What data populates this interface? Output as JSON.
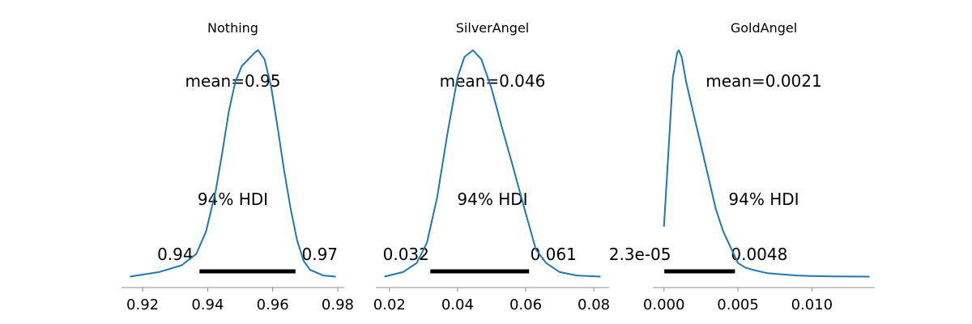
{
  "chart_data": [
    {
      "type": "line",
      "title": "Nothing",
      "xlim": [
        0.9135,
        0.982
      ],
      "ticks": [
        0.92,
        0.94,
        0.96,
        0.98
      ],
      "tick_labels": [
        "0.92",
        "0.94",
        "0.96",
        "0.98"
      ],
      "mean_label": "mean=0.95",
      "hdi_label": "94% HDI",
      "hdi": [
        0.9375,
        0.967
      ],
      "hdi_low_label": "0.94",
      "hdi_high_label": "0.97",
      "density": {
        "x": [
          0.9161,
          0.925,
          0.932,
          0.9365,
          0.9395,
          0.9425,
          0.9445,
          0.9465,
          0.9485,
          0.9505,
          0.9525,
          0.9545,
          0.9555,
          0.9575,
          0.9595,
          0.9615,
          0.9635,
          0.9655,
          0.9675,
          0.9695,
          0.9715,
          0.9755,
          0.9794
        ],
        "y": [
          0.0,
          0.02,
          0.05,
          0.1,
          0.2,
          0.38,
          0.55,
          0.73,
          0.86,
          0.93,
          0.96,
          0.99,
          1.0,
          0.96,
          0.84,
          0.66,
          0.47,
          0.3,
          0.16,
          0.07,
          0.03,
          0.005,
          0.0
        ]
      }
    },
    {
      "type": "line",
      "title": "SilverAngel",
      "xlim": [
        0.016,
        0.0845
      ],
      "ticks": [
        0.02,
        0.04,
        0.06,
        0.08
      ],
      "tick_labels": [
        "0.02",
        "0.04",
        "0.06",
        "0.08"
      ],
      "mean_label": "mean=0.046",
      "hdi_label": "94% HDI",
      "hdi": [
        0.032,
        0.061
      ],
      "hdi_low_label": "0.032",
      "hdi_high_label": "0.061",
      "density": {
        "x": [
          0.0185,
          0.024,
          0.028,
          0.031,
          0.034,
          0.037,
          0.04,
          0.042,
          0.0445,
          0.047,
          0.05,
          0.053,
          0.056,
          0.06,
          0.063,
          0.066,
          0.07,
          0.075,
          0.082
        ],
        "y": [
          0.0,
          0.02,
          0.06,
          0.15,
          0.35,
          0.63,
          0.88,
          0.97,
          1.0,
          0.96,
          0.83,
          0.66,
          0.5,
          0.28,
          0.12,
          0.06,
          0.02,
          0.005,
          0.0
        ]
      }
    },
    {
      "type": "line",
      "title": "GoldAngel",
      "xlim": [
        -0.00075,
        0.01425
      ],
      "ticks": [
        0.0,
        0.005,
        0.01
      ],
      "tick_labels": [
        "0.000",
        "0.005",
        "0.010"
      ],
      "mean_label": "mean=0.0021",
      "hdi_label": "94% HDI",
      "hdi": [
        2.3e-05,
        0.0048
      ],
      "hdi_low_label": "2.3e-05",
      "hdi_high_label": "0.0048",
      "density": {
        "x": [
          0.0,
          0.0003,
          0.0006,
          0.0009,
          0.001,
          0.0012,
          0.0015,
          0.002,
          0.0025,
          0.003,
          0.0035,
          0.004,
          0.0045,
          0.005,
          0.0055,
          0.006,
          0.007,
          0.008,
          0.009,
          0.01,
          0.0115,
          0.0139
        ],
        "y": [
          0.22,
          0.55,
          0.88,
          0.99,
          1.0,
          0.97,
          0.86,
          0.72,
          0.58,
          0.44,
          0.3,
          0.2,
          0.13,
          0.06,
          0.04,
          0.03,
          0.015,
          0.01,
          0.005,
          0.003,
          0.001,
          0.0
        ]
      }
    }
  ]
}
